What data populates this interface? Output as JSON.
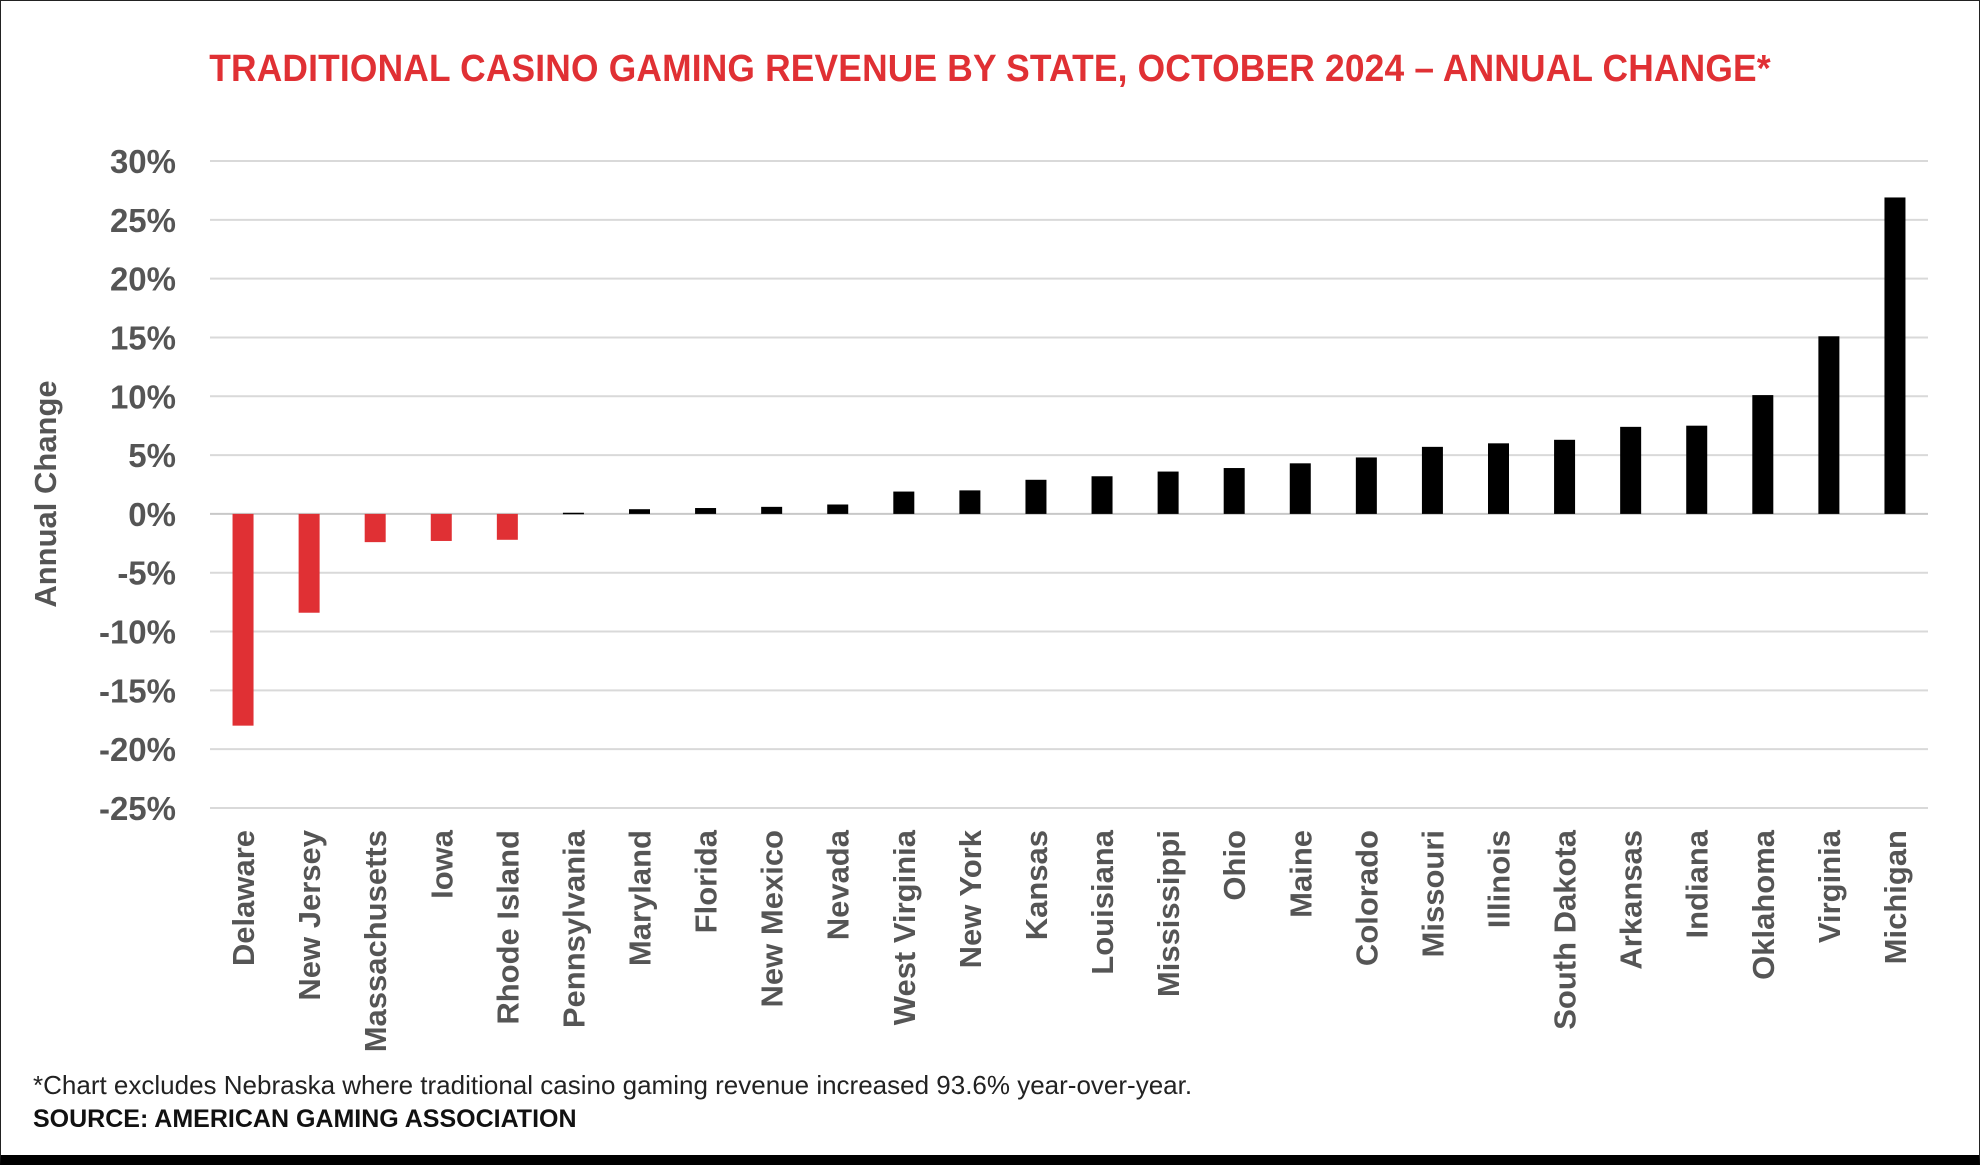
{
  "chart_data": {
    "type": "bar",
    "title": "TRADITIONAL CASINO GAMING REVENUE BY STATE, OCTOBER 2024 – ANNUAL CHANGE*",
    "xlabel": "",
    "ylabel": "Annual Change",
    "ylim": [
      -25,
      30
    ],
    "yticks": [
      30,
      25,
      20,
      15,
      10,
      5,
      0,
      -5,
      -10,
      -15,
      -20,
      -25
    ],
    "ytick_labels": [
      "30%",
      "25%",
      "20%",
      "15%",
      "10%",
      "5%",
      "0%",
      "-5%",
      "-10%",
      "-15%",
      "-20%",
      "-25%"
    ],
    "grid": true,
    "categories": [
      "Delaware",
      "New Jersey",
      "Massachusetts",
      "Iowa",
      "Rhode Island",
      "Pennsylvania",
      "Maryland",
      "Florida",
      "New Mexico",
      "Nevada",
      "West Virginia",
      "New York",
      "Kansas",
      "Louisiana",
      "Mississippi",
      "Ohio",
      "Maine",
      "Colorado",
      "Missouri",
      "Illinois",
      "South Dakota",
      "Arkansas",
      "Indiana",
      "Oklahoma",
      "Virginia",
      "Michigan"
    ],
    "values": [
      -18.0,
      -8.4,
      -2.4,
      -2.3,
      -2.2,
      0.1,
      0.4,
      0.5,
      0.6,
      0.8,
      1.9,
      2.0,
      2.9,
      3.2,
      3.6,
      3.9,
      4.3,
      4.8,
      5.7,
      6.0,
      6.3,
      7.4,
      7.5,
      10.1,
      15.1,
      26.9
    ],
    "colors": {
      "negative": "#e03034",
      "positive": "#000000"
    }
  },
  "footnote": "*Chart excludes Nebraska where traditional casino gaming revenue increased 93.6% year-over-year.",
  "source": "SOURCE: AMERICAN GAMING ASSOCIATION"
}
